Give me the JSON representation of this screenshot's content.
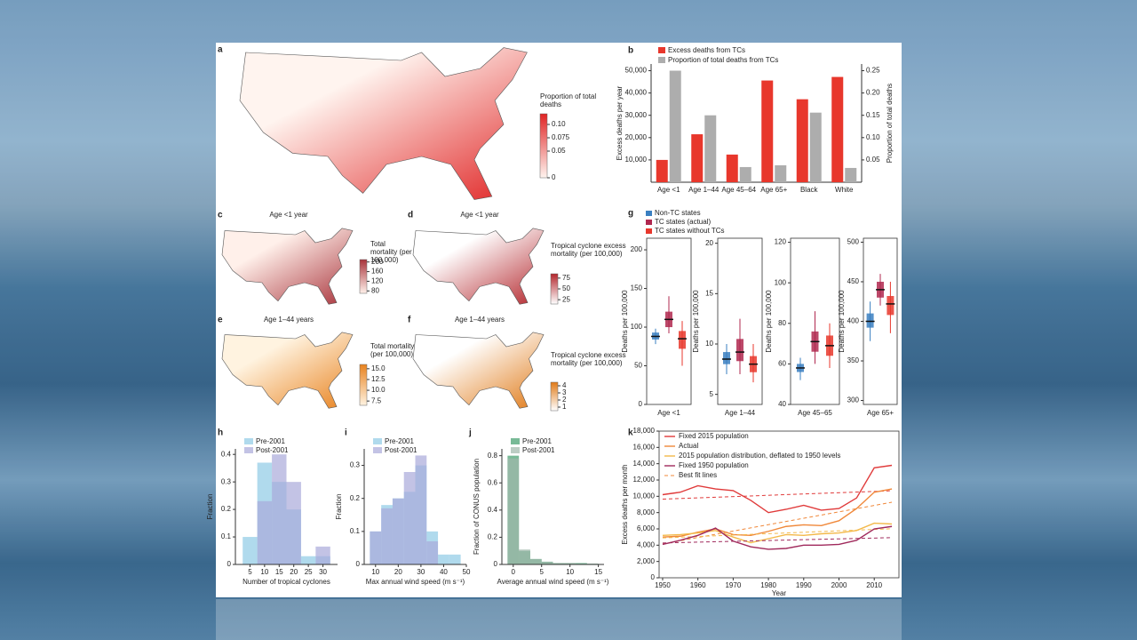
{
  "chart_data": [
    {
      "type": "map",
      "label": "a",
      "legend_title": "Proportion of total deaths",
      "clim": [
        0,
        0.12
      ],
      "colors": [
        "#fff4ef",
        "#e02424"
      ],
      "cticks": [
        0,
        0.05,
        0.075,
        {
          "value": 0.1,
          "label": "0.10"
        }
      ]
    },
    {
      "type": "bar",
      "label": "b",
      "categories": [
        "Age <1",
        "Age 1–44",
        "Age 45–64",
        "Age 65+",
        "Black",
        "White"
      ],
      "series": [
        {
          "name": "Excess deaths from TCs",
          "color": "#e8372c",
          "values": [
            10000,
            21500,
            12400,
            45600,
            37200,
            47200
          ]
        },
        {
          "name": "Proportion of total deaths from TCs",
          "color": "#adadad",
          "axis": "y2",
          "values": [
            0.25,
            0.15,
            0.034,
            0.038,
            0.156,
            0.032
          ]
        }
      ],
      "ylabel": "Excess deaths per year",
      "y2label": "Proportion of total deaths",
      "ylim": [
        0,
        53000
      ],
      "yticks": [
        {
          "value": 10000,
          "label": "10,000"
        },
        {
          "value": 20000,
          "label": "20,000"
        },
        {
          "value": 30000,
          "label": "30,000"
        },
        {
          "value": 40000,
          "label": "40,000"
        },
        {
          "value": 50000,
          "label": "50,000"
        }
      ],
      "y2lim": [
        0,
        0.265
      ],
      "y2ticks": [
        0.05,
        {
          "value": 0.1,
          "label": "0.10"
        },
        0.15,
        {
          "value": 0.2,
          "label": "0.20"
        },
        0.25
      ]
    },
    {
      "type": "map",
      "label": "c",
      "title": "Age <1 year",
      "legend_title": "Total mortality (per 100,000)",
      "clim": [
        70,
        210
      ],
      "colors": [
        "#fff0ea",
        "#a8323a"
      ],
      "cticks": [
        80,
        120,
        160,
        200
      ]
    },
    {
      "type": "map",
      "label": "d",
      "title": "Age <1 year",
      "legend_title": "Tropical cyclone excess mortality (per 100,000)",
      "clim": [
        15,
        85
      ],
      "colors": [
        "#ffffff",
        "#b3262c"
      ],
      "cticks": [
        25,
        50,
        75
      ]
    },
    {
      "type": "map",
      "label": "e",
      "title": "Age 1–44 years",
      "legend_title": "Total mortality (per 100,000)",
      "clim": [
        6.5,
        16
      ],
      "colors": [
        "#fff3e0",
        "#e8821e"
      ],
      "cticks": [
        7.5,
        {
          "value": 10,
          "label": "10.0"
        },
        12.5,
        {
          "value": 15,
          "label": "15.0"
        }
      ]
    },
    {
      "type": "map",
      "label": "f",
      "title": "Age 1–44 years",
      "legend_title": "Tropical cyclone excess mortality (per 100,000)",
      "clim": [
        0.5,
        4.5
      ],
      "colors": [
        "#ffffff",
        "#e07a18"
      ],
      "cticks": [
        1,
        2,
        3,
        4
      ]
    },
    {
      "type": "box",
      "label": "g",
      "ylabel": "Deaths per 100,000",
      "series": [
        {
          "name": "Non-TC states",
          "color": "#3a7fc1"
        },
        {
          "name": "TC states (actual)",
          "color": "#b0284f"
        },
        {
          "name": "TC states without TCs",
          "color": "#e8372c"
        }
      ],
      "panels": [
        {
          "xlabel": "Age <1",
          "ylim": [
            0,
            215
          ],
          "yticks": [
            0,
            50,
            100,
            150,
            200
          ],
          "boxes": [
            {
              "low": 78,
              "q1": 84,
              "median": 88,
              "q3": 93,
              "high": 98
            },
            {
              "low": 92,
              "q1": 100,
              "median": 110,
              "q3": 120,
              "high": 140
            },
            {
              "low": 50,
              "q1": 72,
              "median": 85,
              "q3": 95,
              "high": 108
            }
          ]
        },
        {
          "xlabel": "Age 1–44",
          "ylim": [
            4,
            20.5
          ],
          "yticks": [
            5,
            10,
            15,
            20
          ],
          "boxes": [
            {
              "low": 7,
              "q1": 8,
              "median": 8.5,
              "q3": 9.2,
              "high": 10
            },
            {
              "low": 7,
              "q1": 8.3,
              "median": 9.2,
              "q3": 10.5,
              "high": 12.5
            },
            {
              "low": 6.2,
              "q1": 7.2,
              "median": 8,
              "q3": 8.8,
              "high": 10
            }
          ]
        },
        {
          "xlabel": "Age 45–65",
          "ylim": [
            40,
            122
          ],
          "yticks": [
            40,
            60,
            80,
            100,
            120
          ],
          "boxes": [
            {
              "low": 52,
              "q1": 56,
              "median": 58,
              "q3": 60,
              "high": 63
            },
            {
              "low": 60,
              "q1": 66,
              "median": 71,
              "q3": 76,
              "high": 86
            },
            {
              "low": 58,
              "q1": 64,
              "median": 69,
              "q3": 74,
              "high": 80
            }
          ]
        },
        {
          "xlabel": "Age 65+",
          "ylim": [
            295,
            505
          ],
          "yticks": [
            300,
            350,
            400,
            450,
            500
          ],
          "boxes": [
            {
              "low": 375,
              "q1": 392,
              "median": 400,
              "q3": 410,
              "high": 425
            },
            {
              "low": 420,
              "q1": 430,
              "median": 440,
              "q3": 450,
              "high": 460
            },
            {
              "low": 385,
              "q1": 408,
              "median": 422,
              "q3": 432,
              "high": 450
            }
          ]
        }
      ]
    },
    {
      "type": "histogram",
      "label": "h",
      "xlabel": "Number of tropical cyclones",
      "ylabel": "Fraction",
      "bins": [
        2.5,
        7.5,
        12.5,
        17.5,
        22.5,
        27.5,
        32.5
      ],
      "series": [
        {
          "name": "Pre-2001",
          "color": "#8fcbe6",
          "values": [
            0.1,
            0.37,
            0.3,
            0.2,
            0.03,
            0.03
          ]
        },
        {
          "name": "Post-2001",
          "color": "#a9a9da",
          "values": [
            0,
            0.23,
            0.4,
            0.3,
            0,
            0.065
          ]
        }
      ],
      "xlim": [
        0,
        35
      ],
      "xticks": [
        5,
        10,
        15,
        20,
        25,
        30
      ],
      "ylim": [
        0,
        0.42
      ],
      "yticks": [
        0,
        0.1,
        0.2,
        0.3,
        0.4
      ]
    },
    {
      "type": "histogram",
      "label": "i",
      "xlabel": "Max annual wind speed (m s⁻¹)",
      "ylabel": "Fraction",
      "bins": [
        7.5,
        12.5,
        17.5,
        22.5,
        27.5,
        32.5,
        37.5,
        42.5,
        47.5
      ],
      "series": [
        {
          "name": "Pre-2001",
          "color": "#8fcbe6",
          "values": [
            0.1,
            0.18,
            0.2,
            0.22,
            0.3,
            0.1,
            0.03,
            0.03
          ]
        },
        {
          "name": "Post-2001",
          "color": "#a9a9da",
          "values": [
            0.1,
            0.17,
            0.2,
            0.28,
            0.33,
            0.07,
            0,
            0
          ]
        }
      ],
      "xlim": [
        5,
        50
      ],
      "xticks": [
        10,
        20,
        30,
        40,
        50
      ],
      "ylim": [
        0,
        0.35
      ],
      "yticks": [
        0,
        0.1,
        0.2,
        0.3
      ]
    },
    {
      "type": "histogram",
      "label": "j",
      "xlabel": "Average annual wind speed (m s⁻¹)",
      "ylabel": "Fraction of CONUS population",
      "bins": [
        -1,
        1,
        3,
        5,
        7,
        9,
        11,
        13,
        15
      ],
      "series": [
        {
          "name": "Pre-2001",
          "color": "#3f9c6b",
          "values": [
            0.8,
            0.1,
            0.04,
            0.02,
            0.01,
            0.01,
            0.01,
            0.005
          ]
        },
        {
          "name": "Post-2001",
          "color": "#9fb8ab",
          "values": [
            0.78,
            0.11,
            0.04,
            0.02,
            0.01,
            0.01,
            0.005,
            0.005
          ]
        }
      ],
      "xlim": [
        -2,
        16
      ],
      "xticks": [
        0,
        5,
        10,
        15
      ],
      "ylim": [
        0,
        0.85
      ],
      "yticks": [
        0,
        0.2,
        0.4,
        0.6,
        0.8
      ]
    },
    {
      "type": "line",
      "label": "k",
      "xlabel": "Year",
      "ylabel": "Excess deaths per month",
      "fit_name": "Best fit lines",
      "x": [
        1950,
        1955,
        1960,
        1965,
        1970,
        1975,
        1980,
        1985,
        1990,
        1995,
        2000,
        2005,
        2010,
        2015
      ],
      "series": [
        {
          "name": "Fixed 2015 population",
          "color": "#e03a3a",
          "values": [
            10200,
            10500,
            11300,
            10900,
            10700,
            9500,
            8000,
            8400,
            8900,
            8300,
            8500,
            9800,
            13500,
            13800
          ]
        },
        {
          "name": "Actual",
          "color": "#f0883a",
          "values": [
            5000,
            5100,
            5600,
            6000,
            5300,
            5200,
            5700,
            6300,
            6500,
            6400,
            7000,
            8500,
            10500,
            10900
          ]
        },
        {
          "name": "2015 population distribution, deflated to 1950 levels",
          "color": "#f3b94a",
          "values": [
            5200,
            5300,
            5500,
            5800,
            5000,
            4300,
            4800,
            5300,
            5200,
            5400,
            5500,
            5800,
            6700,
            6600
          ]
        },
        {
          "name": "Fixed 1950 population",
          "color": "#a02a5c",
          "values": [
            4100,
            4600,
            5200,
            6100,
            4500,
            3800,
            3500,
            3600,
            4000,
            4000,
            4100,
            4600,
            6000,
            6300
          ]
        }
      ],
      "xlim": [
        1949,
        2017
      ],
      "xticks": [
        1950,
        1960,
        1970,
        1980,
        1990,
        2000,
        2010
      ],
      "ylim": [
        0,
        18000
      ],
      "yticks": [
        0,
        {
          "value": 2000,
          "label": "2,000"
        },
        {
          "value": 4000,
          "label": "4,000"
        },
        {
          "value": 6000,
          "label": "6,000"
        },
        {
          "value": 8000,
          "label": "8,000"
        },
        {
          "value": 10000,
          "label": "10,000"
        },
        {
          "value": 12000,
          "label": "12,000"
        },
        {
          "value": 14000,
          "label": "14,000"
        },
        {
          "value": 16000,
          "label": "16,000"
        },
        {
          "value": 18000,
          "label": "18,000"
        }
      ]
    }
  ]
}
